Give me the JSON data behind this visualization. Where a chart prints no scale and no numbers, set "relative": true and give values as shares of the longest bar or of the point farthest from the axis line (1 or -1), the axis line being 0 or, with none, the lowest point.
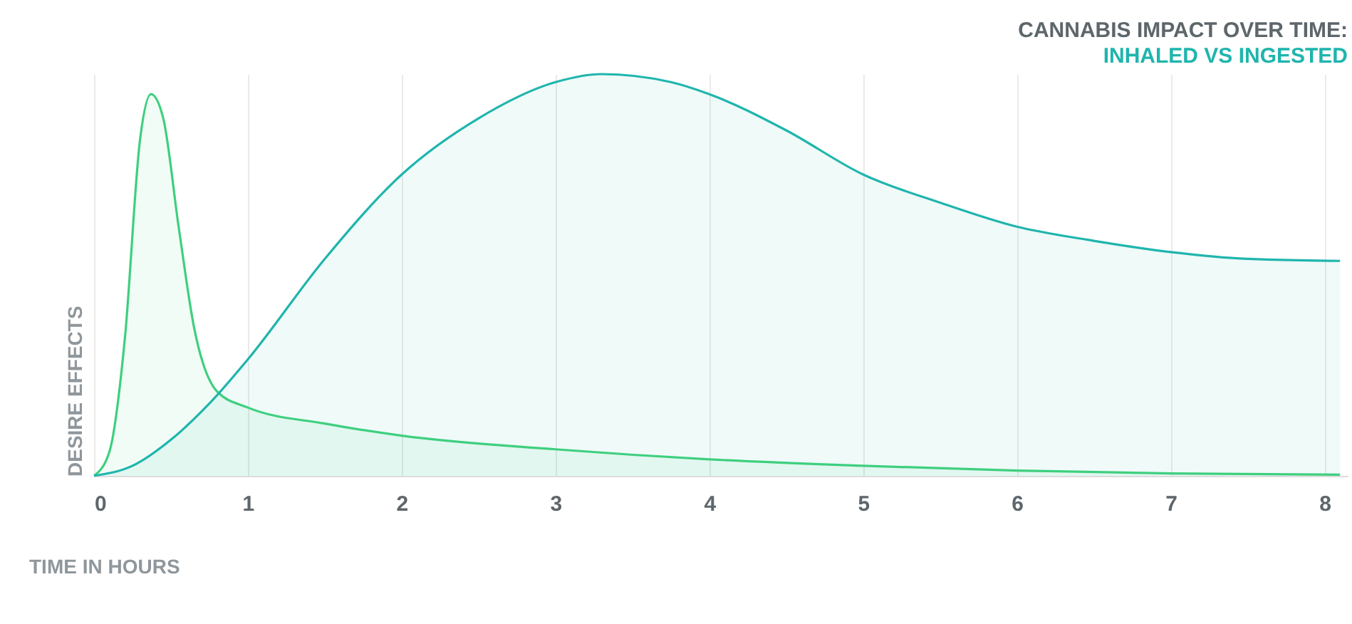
{
  "chart_data": {
    "type": "area",
    "title": "CANNABIS IMPACT OVER TIME:",
    "subtitle": "INHALED VS INGESTED",
    "xlabel": "TIME IN HOURS",
    "ylabel": "DESIRE EFFECTS",
    "relative": true,
    "grid": "x",
    "legend": false,
    "xlim": [
      0,
      8.15
    ],
    "xticks": [
      0,
      1,
      2,
      3,
      4,
      5,
      6,
      7,
      8
    ],
    "series": [
      {
        "color": "#3ecf7e",
        "x": [
          0,
          0.1,
          0.2,
          0.3,
          0.37,
          0.45,
          0.55,
          0.65,
          0.8,
          1,
          1.5,
          2,
          3,
          4,
          5,
          6,
          7,
          8.1
        ],
        "values": [
          0,
          0.06,
          0.34,
          0.84,
          0.95,
          0.89,
          0.62,
          0.37,
          0.21,
          0.17,
          0.13,
          0.1,
          0.066,
          0.041,
          0.025,
          0.013,
          0.006,
          0.003
        ]
      },
      {
        "color": "#1fb5ad",
        "x": [
          0,
          0.25,
          0.5,
          0.75,
          1,
          1.5,
          2,
          2.5,
          3,
          3.3,
          3.75,
          4,
          4.5,
          5,
          5.5,
          6,
          6.5,
          7,
          7.5,
          8.1
        ],
        "values": [
          0,
          0.025,
          0.09,
          0.18,
          0.29,
          0.54,
          0.75,
          0.89,
          0.98,
          1,
          0.98,
          0.95,
          0.86,
          0.75,
          0.68,
          0.62,
          0.585,
          0.557,
          0.54,
          0.535
        ]
      }
    ]
  }
}
